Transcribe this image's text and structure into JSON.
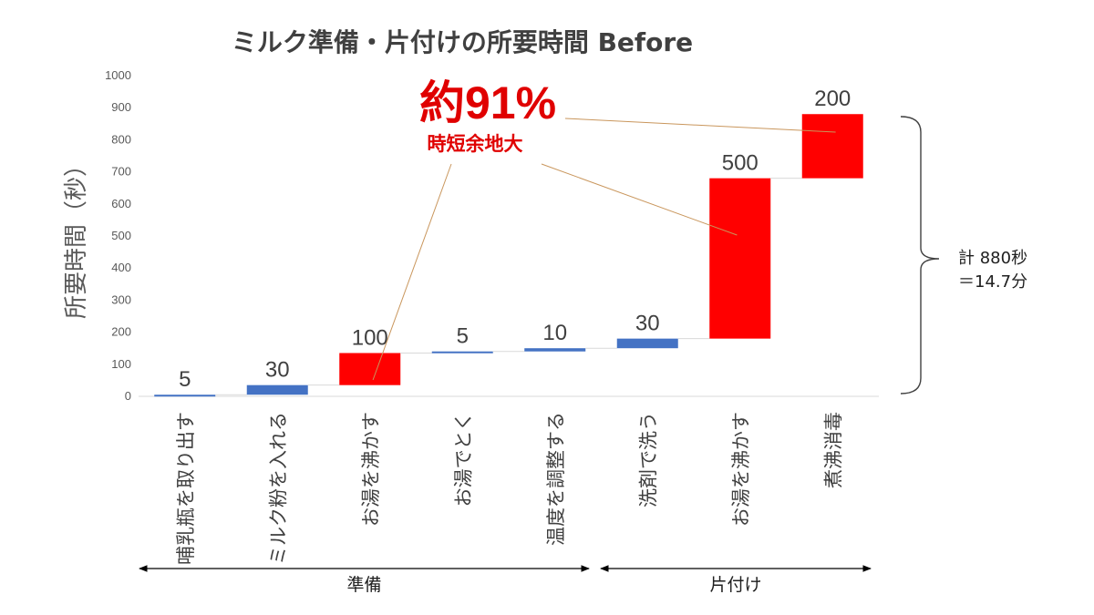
{
  "colors": {
    "blue": "#4472c4",
    "red": "#ff0000",
    "callout": "#e00000",
    "leader": "#c9965c"
  },
  "chart_data": {
    "type": "bar",
    "subtype": "waterfall",
    "title": "ミルク準備・片付けの所要時間 Before",
    "ylabel": "所要時間（秒）",
    "ylim": [
      0,
      1000
    ],
    "yticks": [
      0,
      100,
      200,
      300,
      400,
      500,
      600,
      700,
      800,
      900,
      1000
    ],
    "categories": [
      "哺乳瓶を取り出す",
      "ミルク粉を入れる",
      "お湯を沸かす",
      "お湯でとく",
      "温度を調整する",
      "洗剤で洗う",
      "お湯を沸かす",
      "煮沸消毒"
    ],
    "values": [
      5,
      30,
      100,
      5,
      10,
      30,
      500,
      200
    ],
    "bar_colors": [
      "blue",
      "blue",
      "red",
      "blue",
      "blue",
      "blue",
      "red",
      "red"
    ],
    "groups": [
      {
        "label": "準備",
        "from": 0,
        "to": 4
      },
      {
        "label": "片付け",
        "from": 5,
        "to": 7
      }
    ],
    "annotation": {
      "value": "約91%",
      "text": "時短余地大",
      "points_to": [
        2,
        6,
        7
      ]
    },
    "total": {
      "line1": "計 880秒",
      "line2": "＝14.7分"
    }
  }
}
